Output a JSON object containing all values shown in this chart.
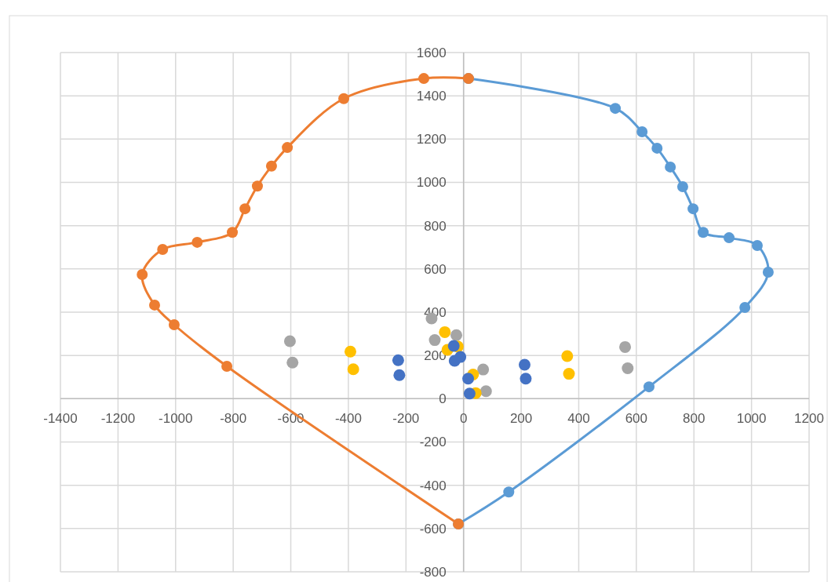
{
  "chart_data": {
    "type": "line",
    "xlim": [
      -1400,
      1200
    ],
    "ylim": [
      -800,
      1600
    ],
    "xticks": [
      -1400,
      -1200,
      -1000,
      -800,
      -600,
      -400,
      -200,
      0,
      200,
      400,
      600,
      800,
      1000,
      1200
    ],
    "yticks": [
      -800,
      -600,
      -400,
      -200,
      0,
      200,
      400,
      600,
      800,
      1000,
      1200,
      1400,
      1600
    ],
    "grid": true,
    "marker": "circle",
    "line_style": "solid",
    "series": [
      {
        "color": "#5b9bd5",
        "x": [
          17,
          527,
          620,
          672,
          718,
          761,
          797,
          832,
          922,
          1020,
          1058,
          977,
          644,
          157,
          -18
        ],
        "values": [
          1480,
          1342,
          1234,
          1158,
          1071,
          980,
          878,
          769,
          744,
          708,
          585,
          422,
          55,
          -431,
          -579
        ]
      },
      {
        "color": "#ed7d31",
        "x": [
          -18,
          -822,
          -1005,
          -1073,
          -1116,
          -1045,
          -925,
          -803,
          -759,
          -716,
          -667,
          -612,
          -416,
          -138,
          17
        ],
        "values": [
          -579,
          150,
          342,
          433,
          574,
          690,
          723,
          769,
          878,
          983,
          1075,
          1161,
          1387,
          1480,
          1480
        ]
      },
      {
        "type": "scatter",
        "color": "#a5a5a5",
        "x": [
          -603,
          -594,
          -111,
          -100,
          -25,
          68,
          78,
          561,
          570
        ],
        "values": [
          266,
          167,
          371,
          271,
          294,
          135,
          35,
          239,
          141
        ]
      },
      {
        "type": "scatter",
        "color": "#ffc000",
        "x": [
          -393,
          -383,
          -65,
          -56,
          -20,
          33,
          42,
          360,
          366
        ],
        "values": [
          218,
          136,
          308,
          226,
          241,
          112,
          26,
          197,
          115
        ]
      },
      {
        "type": "scatter",
        "color": "#4472c4",
        "x": [
          -227,
          -223,
          -34,
          -11,
          -31,
          16,
          21,
          212,
          216
        ],
        "values": [
          178,
          109,
          244,
          193,
          175,
          93,
          24,
          157,
          93
        ]
      }
    ]
  }
}
